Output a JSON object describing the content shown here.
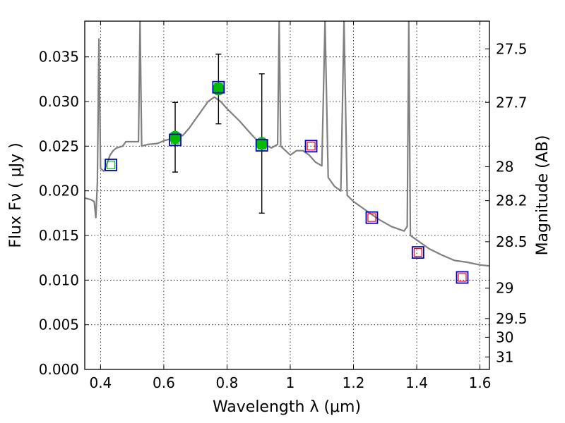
{
  "chart_data": {
    "type": "scatter",
    "xlabel": "Wavelength  λ (μm)",
    "ylabel": "Flux  Fν  ( μJy )",
    "y2label": "Magnitude (AB)",
    "xlim": [
      0.35,
      1.63
    ],
    "ylim": [
      0.0,
      0.039
    ],
    "grid": true,
    "x_ticks": [
      {
        "value": 0.4,
        "label": "0.4"
      },
      {
        "value": 0.6,
        "label": "0.6"
      },
      {
        "value": 0.8,
        "label": "0.8"
      },
      {
        "value": 1.0,
        "label": "1"
      },
      {
        "value": 1.2,
        "label": "1.2"
      },
      {
        "value": 1.4,
        "label": "1.4"
      },
      {
        "value": 1.6,
        "label": "1.6"
      }
    ],
    "y_ticks": [
      {
        "value": 0.0,
        "label": "0.000"
      },
      {
        "value": 0.005,
        "label": "0.005"
      },
      {
        "value": 0.01,
        "label": "0.010"
      },
      {
        "value": 0.015,
        "label": "0.015"
      },
      {
        "value": 0.02,
        "label": "0.020"
      },
      {
        "value": 0.025,
        "label": "0.025"
      },
      {
        "value": 0.03,
        "label": "0.030"
      },
      {
        "value": 0.035,
        "label": "0.035"
      }
    ],
    "y2_ticks": [
      {
        "label": "27.5",
        "flux": 0.0359
      },
      {
        "label": "27.7",
        "flux": 0.0299
      },
      {
        "label": "28",
        "flux": 0.0227
      },
      {
        "label": "28.2",
        "flux": 0.0189
      },
      {
        "label": "28.5",
        "flux": 0.0143
      },
      {
        "label": "29",
        "flux": 0.0091
      },
      {
        "label": "29.5",
        "flux": 0.0057
      },
      {
        "label": "30",
        "flux": 0.0036
      },
      {
        "label": "31",
        "flux": 0.0014
      }
    ],
    "series": [
      {
        "kind": "line",
        "color": "#808080",
        "points": [
          [
            0.35,
            0.0192
          ],
          [
            0.37,
            0.019
          ],
          [
            0.38,
            0.0188
          ],
          [
            0.385,
            0.017
          ],
          [
            0.39,
            0.021
          ],
          [
            0.395,
            0.037
          ],
          [
            0.4,
            0.0225
          ],
          [
            0.41,
            0.0222
          ],
          [
            0.42,
            0.023
          ],
          [
            0.43,
            0.024
          ],
          [
            0.44,
            0.0245
          ],
          [
            0.45,
            0.0248
          ],
          [
            0.47,
            0.025
          ],
          [
            0.48,
            0.0255
          ],
          [
            0.5,
            0.0255
          ],
          [
            0.52,
            0.0255
          ],
          [
            0.525,
            0.039
          ],
          [
            0.53,
            0.025
          ],
          [
            0.55,
            0.0252
          ],
          [
            0.58,
            0.0253
          ],
          [
            0.6,
            0.0256
          ],
          [
            0.62,
            0.0258
          ],
          [
            0.64,
            0.026
          ],
          [
            0.66,
            0.0262
          ],
          [
            0.68,
            0.027
          ],
          [
            0.7,
            0.028
          ],
          [
            0.72,
            0.029
          ],
          [
            0.74,
            0.03
          ],
          [
            0.76,
            0.0305
          ],
          [
            0.78,
            0.03
          ],
          [
            0.8,
            0.0292
          ],
          [
            0.82,
            0.0285
          ],
          [
            0.84,
            0.0278
          ],
          [
            0.86,
            0.027
          ],
          [
            0.88,
            0.0262
          ],
          [
            0.9,
            0.0255
          ],
          [
            0.92,
            0.0252
          ],
          [
            0.94,
            0.0248
          ],
          [
            0.96,
            0.0252
          ],
          [
            0.965,
            0.039
          ],
          [
            0.97,
            0.025
          ],
          [
            1.0,
            0.024
          ],
          [
            1.02,
            0.0245
          ],
          [
            1.04,
            0.0245
          ],
          [
            1.06,
            0.024
          ],
          [
            1.08,
            0.0232
          ],
          [
            1.1,
            0.0228
          ],
          [
            1.11,
            0.039
          ],
          [
            1.12,
            0.0215
          ],
          [
            1.14,
            0.0205
          ],
          [
            1.16,
            0.02
          ],
          [
            1.17,
            0.039
          ],
          [
            1.18,
            0.0195
          ],
          [
            1.2,
            0.0188
          ],
          [
            1.24,
            0.0178
          ],
          [
            1.28,
            0.0168
          ],
          [
            1.32,
            0.016
          ],
          [
            1.36,
            0.0155
          ],
          [
            1.37,
            0.016
          ],
          [
            1.375,
            0.039
          ],
          [
            1.38,
            0.015
          ],
          [
            1.4,
            0.0145
          ],
          [
            1.44,
            0.0135
          ],
          [
            1.48,
            0.0128
          ],
          [
            1.52,
            0.0122
          ],
          [
            1.56,
            0.012
          ],
          [
            1.6,
            0.0117
          ],
          [
            1.63,
            0.0116
          ]
        ]
      },
      {
        "kind": "points",
        "marker": "circle",
        "color": "#00bb00",
        "points": [
          {
            "x": 0.636,
            "y": 0.026,
            "err": 0.0039
          },
          {
            "x": 0.773,
            "y": 0.0314,
            "err": 0.0039
          },
          {
            "x": 0.91,
            "y": 0.0253,
            "err": 0.0078
          }
        ]
      },
      {
        "kind": "points",
        "marker": "square",
        "edge": "#0000cc",
        "points": [
          {
            "x": 0.433,
            "y": 0.0229,
            "inner": "#00bb00"
          },
          {
            "x": 0.636,
            "y": 0.0257,
            "inner": "#00bb00"
          },
          {
            "x": 0.773,
            "y": 0.0316,
            "inner": "#00bb00"
          },
          {
            "x": 0.91,
            "y": 0.0251,
            "inner": "#00bb00"
          },
          {
            "x": 1.066,
            "y": 0.025,
            "inner": "#ff0000"
          },
          {
            "x": 1.258,
            "y": 0.017,
            "inner": "#ff0000"
          },
          {
            "x": 1.404,
            "y": 0.0131,
            "inner": "#ff0000"
          },
          {
            "x": 1.544,
            "y": 0.0103,
            "inner": "#ff0000"
          }
        ]
      }
    ]
  }
}
